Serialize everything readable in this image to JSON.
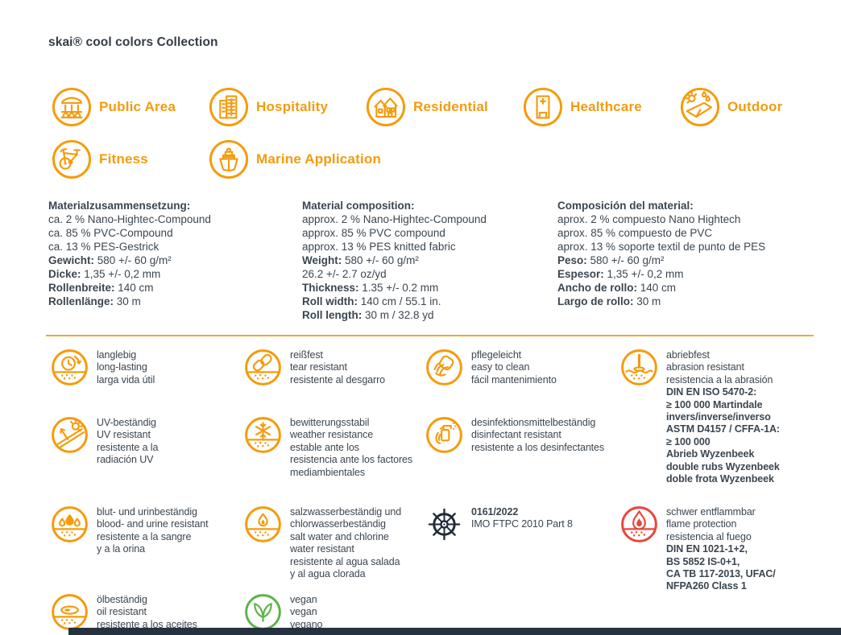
{
  "colors": {
    "orange": "#F59B0C",
    "red": "#E8463C",
    "green": "#5CB44A",
    "navy": "#1F2B38",
    "text": "#3B4650",
    "divider": "#F0A830",
    "bottom_bar": "#273240"
  },
  "header": {
    "title": "skai® cool colors Collection"
  },
  "applications": [
    {
      "name": "public-area",
      "icon": "public-area-icon",
      "label": "Public Area"
    },
    {
      "name": "hospitality",
      "icon": "hospitality-icon",
      "label": "Hospitality"
    },
    {
      "name": "residential",
      "icon": "residential-icon",
      "label": "Residential"
    },
    {
      "name": "healthcare",
      "icon": "healthcare-icon",
      "label": "Healthcare"
    },
    {
      "name": "outdoor",
      "icon": "outdoor-icon",
      "label": "Outdoor"
    },
    {
      "name": "fitness",
      "icon": "fitness-icon",
      "label": "Fitness"
    },
    {
      "name": "marine-application",
      "icon": "marine-application-icon",
      "label": "Marine Application"
    }
  ],
  "material_columns": [
    {
      "heading": "Materialzusammensetzung:",
      "lines": [
        {
          "label": "",
          "value": "ca. 2 % Nano-Hightec-Compound"
        },
        {
          "label": "",
          "value": "ca. 85 % PVC-Compound"
        },
        {
          "label": "",
          "value": "ca. 13 % PES-Gestrick"
        },
        {
          "label": "Gewicht:",
          "value": " 580 +/- 60 g/m²"
        },
        {
          "label": "Dicke:",
          "value": " 1,35 +/- 0,2 mm"
        },
        {
          "label": "Rollenbreite:",
          "value": " 140 cm"
        },
        {
          "label": "Rollenlänge:",
          "value": " 30 m"
        }
      ]
    },
    {
      "heading": "Material composition:",
      "lines": [
        {
          "label": "",
          "value": "approx. 2 % Nano-Hightec-Compound"
        },
        {
          "label": "",
          "value": "approx. 85 % PVC compound"
        },
        {
          "label": "",
          "value": "approx. 13 % PES knitted fabric"
        },
        {
          "label": "Weight:",
          "value": " 580 +/- 60 g/m²"
        },
        {
          "label": "",
          "value": "26.2 +/- 2.7 oz/yd"
        },
        {
          "label": "Thickness:",
          "value": " 1.35 +/- 0.2 mm"
        },
        {
          "label": "Roll width:",
          "value": " 140 cm / 55.1 in."
        },
        {
          "label": "Roll length:",
          "value": " 30 m / 32.8 yd"
        }
      ]
    },
    {
      "heading": "Composición del material:",
      "lines": [
        {
          "label": "",
          "value": "aprox. 2 % compuesto Nano Hightech"
        },
        {
          "label": "",
          "value": "aprox. 85 % compuesto de PVC"
        },
        {
          "label": "",
          "value": "aprox. 13 % soporte textil de punto de PES"
        },
        {
          "label": "Peso:",
          "value": " 580 +/- 60 g/m²"
        },
        {
          "label": "Espesor:",
          "value": " 1,35 +/- 0,2 mm"
        },
        {
          "label": "Ancho de rollo:",
          "value": " 140 cm"
        },
        {
          "label": "Largo de rollo:",
          "value": " 30 m"
        }
      ]
    }
  ],
  "features": [
    {
      "name": "long-lasting",
      "icon": "long-lasting-icon",
      "color": "orange",
      "lines": [
        {
          "text": "langlebig",
          "bold": false
        },
        {
          "text": "long-lasting",
          "bold": false
        },
        {
          "text": "larga vida útil",
          "bold": false
        }
      ]
    },
    {
      "name": "tear-resistant",
      "icon": "tear-resistant-icon",
      "color": "orange",
      "lines": [
        {
          "text": "reißfest",
          "bold": false
        },
        {
          "text": "tear resistant",
          "bold": false
        },
        {
          "text": "resistente al desgarro",
          "bold": false
        }
      ]
    },
    {
      "name": "easy-to-clean",
      "icon": "easy-to-clean-icon",
      "color": "orange",
      "lines": [
        {
          "text": "pflegeleicht",
          "bold": false
        },
        {
          "text": "easy to clean",
          "bold": false
        },
        {
          "text": "fácil mantenimiento",
          "bold": false
        }
      ]
    },
    {
      "name": "abrasion-resistant",
      "icon": "abrasion-resistant-icon",
      "color": "orange",
      "lines": [
        {
          "text": "abriebfest",
          "bold": false
        },
        {
          "text": "abrasion resistant",
          "bold": false
        },
        {
          "text": "resistencia a la abrasión",
          "bold": false
        },
        {
          "text": "DIN EN ISO 5470-2:",
          "bold": true
        },
        {
          "text": "≥ 100 000 Martindale",
          "bold": true
        },
        {
          "text": "invers/inverse/inverso",
          "bold": true
        },
        {
          "text": "ASTM D4157 / CFFA-1A:",
          "bold": true
        },
        {
          "text": "≥ 100 000",
          "bold": true
        },
        {
          "text": "Abrieb Wyzenbeek",
          "bold": true
        },
        {
          "text": "double rubs Wyzenbeek",
          "bold": true
        },
        {
          "text": "doble frota Wyzenbeek",
          "bold": true
        }
      ]
    },
    {
      "name": "uv-resistant",
      "icon": "uv-resistant-icon",
      "color": "orange",
      "lines": [
        {
          "text": "UV-beständig",
          "bold": false
        },
        {
          "text": "UV resistant",
          "bold": false
        },
        {
          "text": "resistente a la",
          "bold": false
        },
        {
          "text": "radiación UV",
          "bold": false
        }
      ]
    },
    {
      "name": "weather-resistance",
      "icon": "weather-resistance-icon",
      "color": "orange",
      "lines": [
        {
          "text": "bewitterungsstabil",
          "bold": false
        },
        {
          "text": "weather resistance",
          "bold": false
        },
        {
          "text": "estable ante los",
          "bold": false
        },
        {
          "text": "resistencia ante los factores",
          "bold": false
        },
        {
          "text": "mediambientales",
          "bold": false
        }
      ]
    },
    {
      "name": "disinfectant-resistant",
      "icon": "disinfectant-resistant-icon",
      "color": "orange",
      "lines": [
        {
          "text": "desinfektionsmittelbeständig",
          "bold": false
        },
        {
          "text": "disinfectant resistant",
          "bold": false
        },
        {
          "text": "resistente a los desinfectantes",
          "bold": false
        }
      ]
    },
    {
      "name": "blood-urine-resistant",
      "icon": "blood-urine-resistant-icon",
      "color": "orange",
      "lines": [
        {
          "text": "blut- und urinbeständig",
          "bold": false
        },
        {
          "text": "blood- and urine resistant",
          "bold": false
        },
        {
          "text": "resistente a la sangre",
          "bold": false
        },
        {
          "text": "y a la orina",
          "bold": false
        }
      ]
    },
    {
      "name": "salt-chlorine-water-resistant",
      "icon": "salt-chlorine-water-resistant-icon",
      "color": "orange",
      "lines": [
        {
          "text": "salzwasserbeständig und",
          "bold": false
        },
        {
          "text": "chlorwasserbeständig",
          "bold": false
        },
        {
          "text": "salt water and chlorine",
          "bold": false
        },
        {
          "text": "water resistant",
          "bold": false
        },
        {
          "text": "resistente al agua salada",
          "bold": false
        },
        {
          "text": "y al agua clorada",
          "bold": false
        }
      ]
    },
    {
      "name": "imo-certificate",
      "icon": "imo-certificate-icon",
      "color": "navy",
      "lines": [
        {
          "text": "0161/2022",
          "bold": true
        },
        {
          "text": "IMO FTPC 2010 Part 8",
          "bold": false
        }
      ]
    },
    {
      "name": "flame-protection",
      "icon": "flame-protection-icon",
      "color": "red",
      "lines": [
        {
          "text": "schwer entflammbar",
          "bold": false
        },
        {
          "text": "flame protection",
          "bold": false
        },
        {
          "text": "resistencia al fuego",
          "bold": false
        },
        {
          "text": "DIN EN 1021-1+2,",
          "bold": true
        },
        {
          "text": "BS 5852 IS-0+1,",
          "bold": true
        },
        {
          "text": "CA TB 117-2013, UFAC/",
          "bold": true
        },
        {
          "text": "NFPA260 Class 1",
          "bold": true
        }
      ]
    },
    {
      "name": "oil-resistant",
      "icon": "oil-resistant-icon",
      "color": "orange",
      "lines": [
        {
          "text": "ölbeständig",
          "bold": false
        },
        {
          "text": "oil resistant",
          "bold": false
        },
        {
          "text": "resistente a los aceites",
          "bold": false
        }
      ]
    },
    {
      "name": "vegan",
      "icon": "vegan-icon",
      "color": "green",
      "lines": [
        {
          "text": "vegan",
          "bold": false
        },
        {
          "text": "vegan",
          "bold": false
        },
        {
          "text": "vegano",
          "bold": false
        }
      ]
    }
  ]
}
